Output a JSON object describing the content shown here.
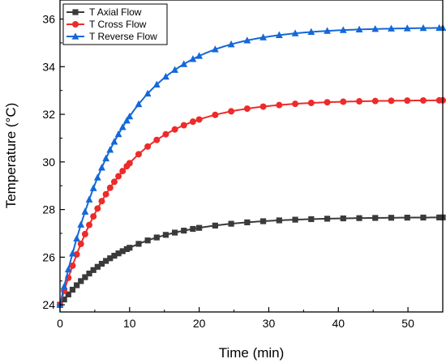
{
  "chart_data": {
    "type": "line",
    "xlabel": "Time (min)",
    "ylabel": "Temperature (°C)",
    "xlim": [
      0,
      55
    ],
    "ylim": [
      23.7,
      36.8
    ],
    "xticks": [
      "0",
      "10",
      "20",
      "30",
      "40",
      "50"
    ],
    "yticks": [
      "24",
      "26",
      "28",
      "30",
      "32",
      "34",
      "36"
    ],
    "grid": false,
    "legend": "top-left",
    "series": [
      {
        "name": "T Axial Flow",
        "color": "#3a3a3a",
        "marker": "square",
        "t0": 24.0,
        "tinf": 27.68,
        "tau": 9.5
      },
      {
        "name": "T Cross Flow",
        "color": "#ee2a2a",
        "marker": "circle",
        "t0": 24.0,
        "tinf": 32.6,
        "tau": 8.5
      },
      {
        "name": "T Reverse Flow",
        "color": "#1468d8",
        "marker": "triangle",
        "t0": 24.0,
        "tinf": 35.65,
        "tau": 8.8
      }
    ]
  }
}
